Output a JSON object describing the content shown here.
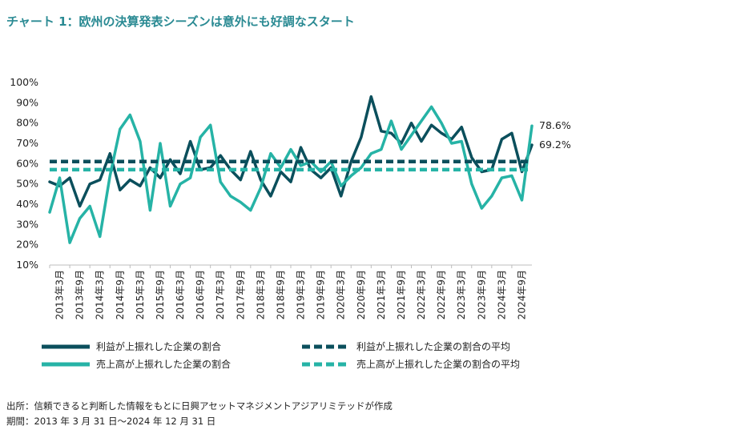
{
  "title": "チャート 1：欧州の決算発表シーズンは意外にも好調なスタート",
  "chart_data": {
    "type": "line",
    "ylim": [
      10,
      100
    ],
    "yticks": [
      "100%",
      "90%",
      "80%",
      "70%",
      "60%",
      "50%",
      "40%",
      "30%",
      "20%",
      "10%"
    ],
    "xtick_labels": [
      "2013年3月",
      "2013年9月",
      "2014年3月",
      "2014年9月",
      "2015年3月",
      "2015年9月",
      "2016年3月",
      "2016年9月",
      "2017年3月",
      "2017年9月",
      "2018年3月",
      "2018年9月",
      "2019年3月",
      "2019年9月",
      "2020年3月",
      "2020年9月",
      "2021年3月",
      "2021年9月",
      "2022年3月",
      "2022年9月",
      "2023年3月",
      "2023年9月",
      "2024年3月",
      "2024年9月"
    ],
    "grid": false,
    "legend_position": "bottom",
    "series": [
      {
        "name": "利益が上振れした企業の割合",
        "color": "#0b4f5c",
        "style": "solid",
        "values": [
          51,
          49,
          53,
          39,
          50,
          52,
          65,
          47,
          52,
          49,
          58,
          53,
          62,
          55,
          71,
          57,
          58,
          64,
          57,
          52,
          66,
          52,
          44,
          56,
          51,
          68,
          57,
          53,
          58,
          44,
          61,
          73,
          93,
          76,
          75,
          70,
          80,
          71,
          79,
          75,
          72,
          78,
          63,
          56,
          57,
          72,
          75,
          56,
          69.2
        ]
      },
      {
        "name": "売上高が上振れした企業の割合",
        "color": "#26b3a6",
        "style": "solid",
        "values": [
          36,
          53,
          21,
          33,
          39,
          24,
          54,
          77,
          84,
          71,
          37,
          70,
          39,
          50,
          53,
          73,
          79,
          51,
          44,
          41,
          37,
          48,
          65,
          58,
          67,
          59,
          61,
          56,
          61,
          49,
          54,
          58,
          65,
          67,
          81,
          67,
          74,
          81,
          88,
          80,
          70,
          71,
          50,
          38,
          44,
          53,
          54,
          42,
          78.6
        ]
      },
      {
        "name": "利益が上振れした企業の割合の平均",
        "color": "#0b4f5c",
        "style": "dashed",
        "values": [
          61,
          61
        ]
      },
      {
        "name": "売上高が上振れした企業の割合の平均",
        "color": "#26b3a6",
        "style": "dashed",
        "values": [
          57,
          57
        ]
      }
    ],
    "end_labels": [
      {
        "text": "78.6%",
        "value": 78.6
      },
      {
        "text": "69.2%",
        "value": 69.2
      }
    ]
  },
  "footer": {
    "line1": "出所：信頼できると判断した情報をもとに日興アセットマネジメントアジアリミテッドが作成",
    "line2": "期間：2013 年 3 月 31 日～2024 年 12 月 31 日"
  }
}
